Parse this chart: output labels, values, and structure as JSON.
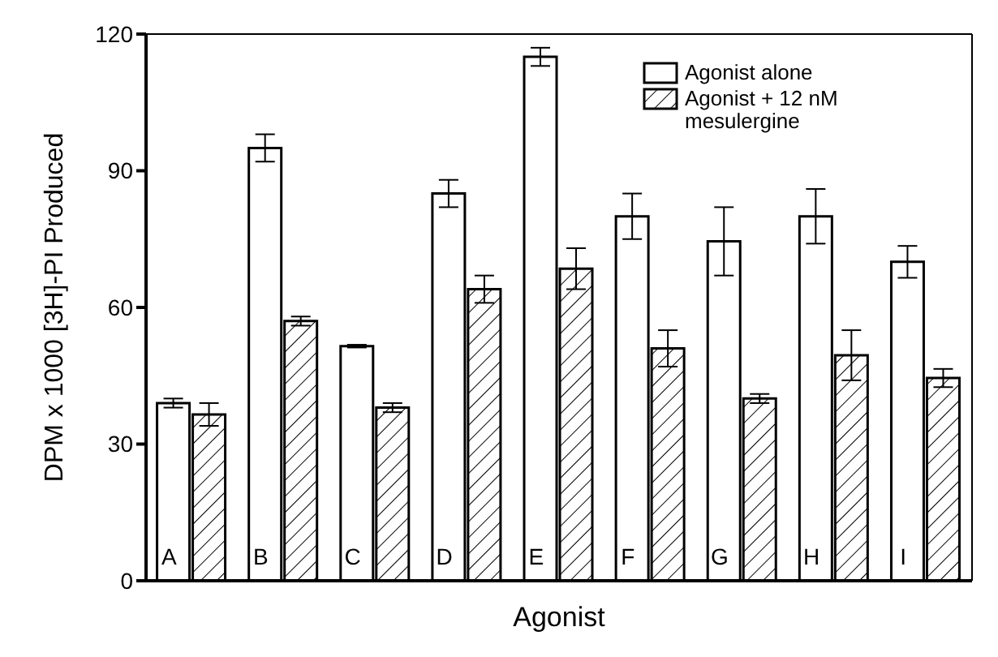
{
  "chart_data": {
    "type": "bar",
    "xlabel": "Agonist",
    "ylabel": "DPM x 1000 [3H]-PI Produced",
    "categories": [
      "A",
      "B",
      "C",
      "D",
      "E",
      "F",
      "G",
      "H",
      "I"
    ],
    "series": [
      {
        "name": "Agonist alone",
        "color": "#ffffff",
        "values": [
          39,
          95,
          51.5,
          85,
          115,
          80,
          74.5,
          80,
          70
        ],
        "errors": [
          1,
          3,
          0.3,
          3,
          2,
          5,
          7.5,
          6,
          3.5
        ]
      },
      {
        "name": "Agonist + 12 nM mesulergine",
        "color": "#000000",
        "values": [
          36.5,
          57,
          38,
          64,
          68.5,
          51,
          40,
          49.5,
          44.5
        ],
        "errors": [
          2.5,
          1,
          1,
          3,
          4.5,
          4,
          1,
          5.5,
          2
        ]
      }
    ],
    "ylim": [
      0,
      120
    ],
    "yticks": [
      0,
      30,
      60,
      90,
      120
    ],
    "grid": false,
    "legend": "top right"
  }
}
